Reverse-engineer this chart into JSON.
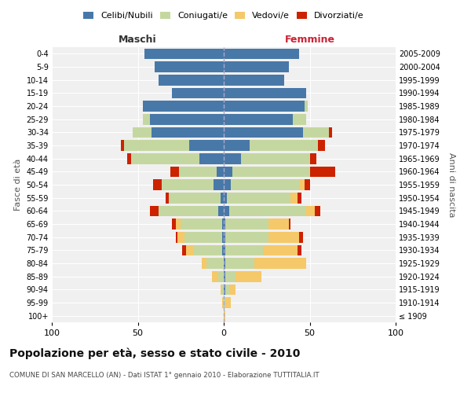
{
  "age_groups": [
    "100+",
    "95-99",
    "90-94",
    "85-89",
    "80-84",
    "75-79",
    "70-74",
    "65-69",
    "60-64",
    "55-59",
    "50-54",
    "45-49",
    "40-44",
    "35-39",
    "30-34",
    "25-29",
    "20-24",
    "15-19",
    "10-14",
    "5-9",
    "0-4"
  ],
  "birth_years": [
    "≤ 1909",
    "1910-1914",
    "1915-1919",
    "1920-1924",
    "1925-1929",
    "1930-1934",
    "1935-1939",
    "1940-1944",
    "1945-1949",
    "1950-1954",
    "1955-1959",
    "1960-1964",
    "1965-1969",
    "1970-1974",
    "1975-1979",
    "1980-1984",
    "1985-1989",
    "1990-1994",
    "1995-1999",
    "2000-2004",
    "2005-2009"
  ],
  "colors": {
    "celibi": "#4878a8",
    "coniugati": "#c5d7a0",
    "vedovi": "#f5c869",
    "divorziati": "#cc2200"
  },
  "males": {
    "celibi": [
      0,
      0,
      0,
      0,
      0,
      1,
      1,
      1,
      3,
      2,
      6,
      4,
      14,
      20,
      42,
      43,
      47,
      30,
      38,
      40,
      46
    ],
    "coniugati": [
      0,
      0,
      1,
      3,
      10,
      17,
      22,
      24,
      35,
      30,
      30,
      22,
      40,
      38,
      11,
      4,
      0,
      0,
      0,
      0,
      0
    ],
    "vedovi": [
      0,
      1,
      1,
      4,
      3,
      4,
      4,
      3,
      0,
      0,
      0,
      0,
      0,
      0,
      0,
      0,
      0,
      0,
      0,
      0,
      0
    ],
    "divorziati": [
      0,
      0,
      0,
      0,
      0,
      2,
      1,
      2,
      5,
      2,
      5,
      5,
      2,
      2,
      0,
      0,
      0,
      0,
      0,
      0,
      0
    ]
  },
  "females": {
    "celibi": [
      0,
      0,
      1,
      1,
      1,
      1,
      1,
      1,
      3,
      2,
      4,
      5,
      10,
      15,
      46,
      40,
      47,
      48,
      35,
      38,
      44
    ],
    "coniugati": [
      0,
      1,
      2,
      6,
      17,
      22,
      25,
      25,
      45,
      37,
      40,
      45,
      40,
      40,
      15,
      8,
      2,
      0,
      0,
      0,
      0
    ],
    "vedovi": [
      1,
      3,
      4,
      15,
      30,
      20,
      18,
      12,
      5,
      4,
      3,
      0,
      0,
      0,
      0,
      0,
      0,
      0,
      0,
      0,
      0
    ],
    "divorziati": [
      0,
      0,
      0,
      0,
      0,
      2,
      2,
      1,
      3,
      2,
      3,
      15,
      4,
      4,
      2,
      0,
      0,
      0,
      0,
      0,
      0
    ]
  },
  "title": "Popolazione per età, sesso e stato civile - 2010",
  "subtitle": "COMUNE DI SAN MARCELLO (AN) - Dati ISTAT 1° gennaio 2010 - Elaborazione TUTTITALIA.IT",
  "xlabel_left": "Maschi",
  "xlabel_right": "Femmine",
  "ylabel_left": "Fasce di età",
  "ylabel_right": "Anni di nascita",
  "xlim": 100,
  "bg_color": "#f0f0f0",
  "legend_labels": [
    "Celibi/Nubili",
    "Coniugati/e",
    "Vedovi/e",
    "Divorziati/e"
  ]
}
